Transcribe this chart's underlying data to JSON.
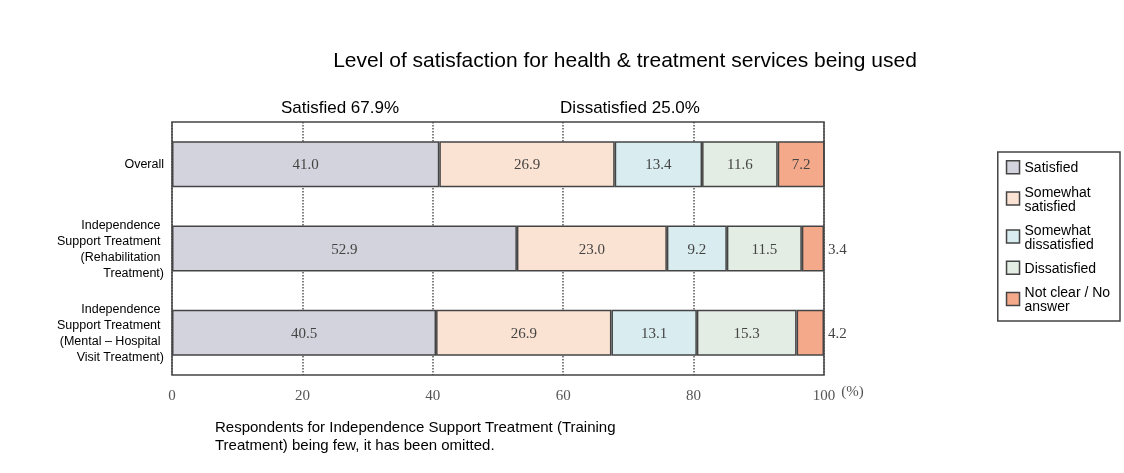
{
  "chart_data": {
    "type": "bar",
    "orientation": "horizontal",
    "stacked": true,
    "title": "Level of satisfaction for health & treatment services being used",
    "xlabel": "(%)",
    "categories": [
      "Overall",
      "Independence Support Treatment (Rehabilitation Treatment)",
      "Independence Support Treatment (Mental – Hospital Visit Treatment)"
    ],
    "series": [
      {
        "name": "Satisfied",
        "color": "#d3d3dd",
        "values": [
          41.0,
          52.9,
          40.5
        ],
        "value_labels": [
          "41.0",
          "52.9",
          "40.5"
        ]
      },
      {
        "name": "Somewhat satisfied",
        "color": "#fbe3d3",
        "values": [
          26.9,
          23.0,
          26.9
        ],
        "value_labels": [
          "26.9",
          "23.0",
          "26.9"
        ]
      },
      {
        "name": "Somewhat dissatisfied",
        "color": "#d9ecef",
        "values": [
          13.4,
          9.2,
          13.1
        ],
        "value_labels": [
          "13.4",
          "9.2",
          "13.1"
        ]
      },
      {
        "name": "Dissatisfied",
        "color": "#e4ede3",
        "values": [
          11.6,
          11.5,
          15.3
        ],
        "value_labels": [
          "11.6",
          "11.5",
          "15.3"
        ]
      },
      {
        "name": "Not clear / No answer",
        "color": "#f4a98a",
        "values": [
          7.2,
          3.4,
          4.2
        ],
        "value_labels": [
          "7.2",
          "3.4",
          "4.2"
        ]
      }
    ],
    "xlim": [
      0,
      100
    ],
    "xticks": [
      0,
      20,
      40,
      60,
      80,
      100
    ],
    "grid": "x",
    "line_style": "dotted",
    "legend": "right",
    "annotations": [
      "Satisfied 67.9%",
      "Dissatisfied 25.0%",
      "Respondents for Independence Support Treatment (Training Treatment) being few, it has been omitted."
    ]
  }
}
